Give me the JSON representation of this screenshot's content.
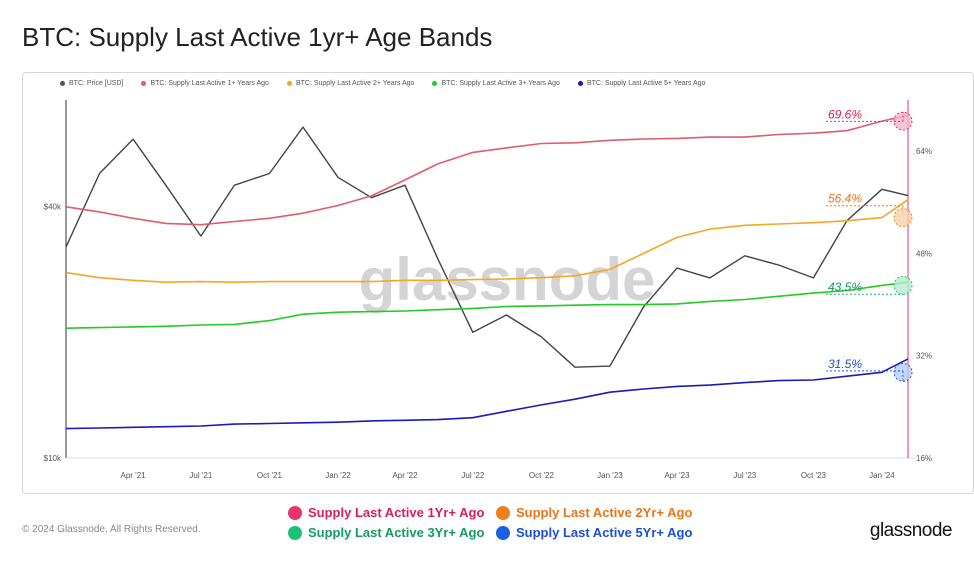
{
  "title": "BTC: Supply Last Active 1yr+ Age Bands",
  "top_legend": [
    {
      "label": "BTC: Price [USD]",
      "color": "#555555"
    },
    {
      "label": "BTC: Supply Last Active 1+ Years Ago",
      "color": "#e05c6a"
    },
    {
      "label": "BTC: Supply Last Active 2+ Years Ago",
      "color": "#f5a623"
    },
    {
      "label": "BTC: Supply Last Active 3+ Years Ago",
      "color": "#22cc22"
    },
    {
      "label": "BTC: Supply Last Active 5+ Years Ago",
      "color": "#1a1ab8"
    }
  ],
  "bottom_legend": [
    {
      "label": "Supply Last Active 1Yr+ Ago",
      "dot_color": "#e8336b",
      "text_color": "#d61f5a"
    },
    {
      "label": "Supply Last Active 2Yr+ Ago",
      "dot_color": "#f07f1a",
      "text_color": "#e8751a"
    },
    {
      "label": "Supply Last Active 3Yr+ Ago",
      "dot_color": "#1fbf78",
      "text_color": "#159a5f"
    },
    {
      "label": "Supply Last Active 5Yr+ Ago",
      "dot_color": "#1a5fe8",
      "text_color": "#1a4fd6"
    }
  ],
  "copyright": "© 2024 Glassnode. All Rights Reserved.",
  "brand": "glassnode",
  "watermark": "glassnode",
  "chart_data": {
    "type": "line",
    "x_ticks": [
      "Apr '21",
      "Jul '21",
      "Oct '21",
      "Jan '22",
      "Apr '22",
      "Jul '22",
      "Oct '22",
      "Jan '23",
      "Apr '23",
      "Jul '23",
      "Oct '23",
      "Jan '24"
    ],
    "left_axis": {
      "ticks": [
        "$40k",
        "$10k"
      ],
      "scale": "log"
    },
    "right_axis": {
      "ticks": [
        "64%",
        "48%",
        "32%",
        "16%"
      ],
      "range": [
        16,
        72
      ]
    },
    "x": [
      "2021-01-01",
      "2021-02-15",
      "2021-04-01",
      "2021-05-15",
      "2021-07-01",
      "2021-08-15",
      "2021-10-01",
      "2021-11-15",
      "2022-01-01",
      "2022-02-15",
      "2022-04-01",
      "2022-05-15",
      "2022-07-01",
      "2022-08-15",
      "2022-10-01",
      "2022-11-15",
      "2023-01-01",
      "2023-02-15",
      "2023-04-01",
      "2023-05-15",
      "2023-07-01",
      "2023-08-15",
      "2023-10-01",
      "2023-11-15",
      "2024-01-01",
      "2024-02-05"
    ],
    "series": [
      {
        "name": "BTC: Price [USD]",
        "color": "#444444",
        "axis": "left",
        "values": [
          32000,
          48000,
          58000,
          45000,
          34000,
          45000,
          48000,
          62000,
          47000,
          42000,
          45000,
          30000,
          20000,
          22000,
          19500,
          16500,
          16600,
          23000,
          28500,
          27000,
          30500,
          29000,
          27000,
          37000,
          44000,
          42500
        ]
      },
      {
        "name": "BTC: Supply Last Active 1+ Years Ago",
        "color": "#e05c6a",
        "axis": "right",
        "values": [
          55.3,
          54.5,
          53.5,
          52.7,
          52.5,
          53.0,
          53.5,
          54.3,
          55.5,
          57.0,
          59.5,
          62.0,
          63.8,
          64.5,
          65.2,
          65.3,
          65.7,
          65.9,
          66.0,
          66.2,
          66.2,
          66.6,
          66.8,
          67.2,
          68.7,
          69.6
        ]
      },
      {
        "name": "BTC: Supply Last Active 2+ Years Ago",
        "color": "#f5a623",
        "axis": "right",
        "values": [
          45.0,
          44.2,
          43.8,
          43.5,
          43.6,
          43.5,
          43.6,
          43.6,
          43.6,
          43.6,
          43.8,
          43.8,
          43.9,
          44.0,
          44.2,
          44.5,
          45.5,
          48.0,
          50.5,
          51.8,
          52.4,
          52.6,
          52.8,
          53.1,
          53.6,
          56.4
        ]
      },
      {
        "name": "BTC: Supply Last Active 3+ Years Ago",
        "color": "#22cc22",
        "axis": "right",
        "values": [
          36.3,
          36.4,
          36.5,
          36.6,
          36.8,
          36.9,
          37.5,
          38.5,
          38.8,
          38.9,
          39.0,
          39.2,
          39.4,
          39.7,
          39.8,
          39.9,
          40.0,
          40.0,
          40.1,
          40.5,
          40.8,
          41.3,
          41.8,
          42.2,
          43.0,
          43.5
        ]
      },
      {
        "name": "BTC: Supply Last Active 5+ Years Ago",
        "color": "#1a1ab8",
        "axis": "right",
        "values": [
          20.6,
          20.7,
          20.8,
          20.9,
          21.0,
          21.3,
          21.4,
          21.5,
          21.6,
          21.8,
          21.9,
          22.0,
          22.3,
          23.3,
          24.3,
          25.2,
          26.3,
          26.8,
          27.2,
          27.4,
          27.8,
          28.1,
          28.2,
          28.8,
          29.4,
          31.5
        ]
      }
    ],
    "annotations": [
      {
        "text": "69.6%",
        "color": "#d61f5a",
        "series": 1
      },
      {
        "text": "56.4%",
        "color": "#e8751a",
        "series": 2
      },
      {
        "text": "43.5%",
        "color": "#159a5f",
        "series": 3
      },
      {
        "text": "31.5%",
        "color": "#1a4fd6",
        "series": 4
      }
    ]
  }
}
